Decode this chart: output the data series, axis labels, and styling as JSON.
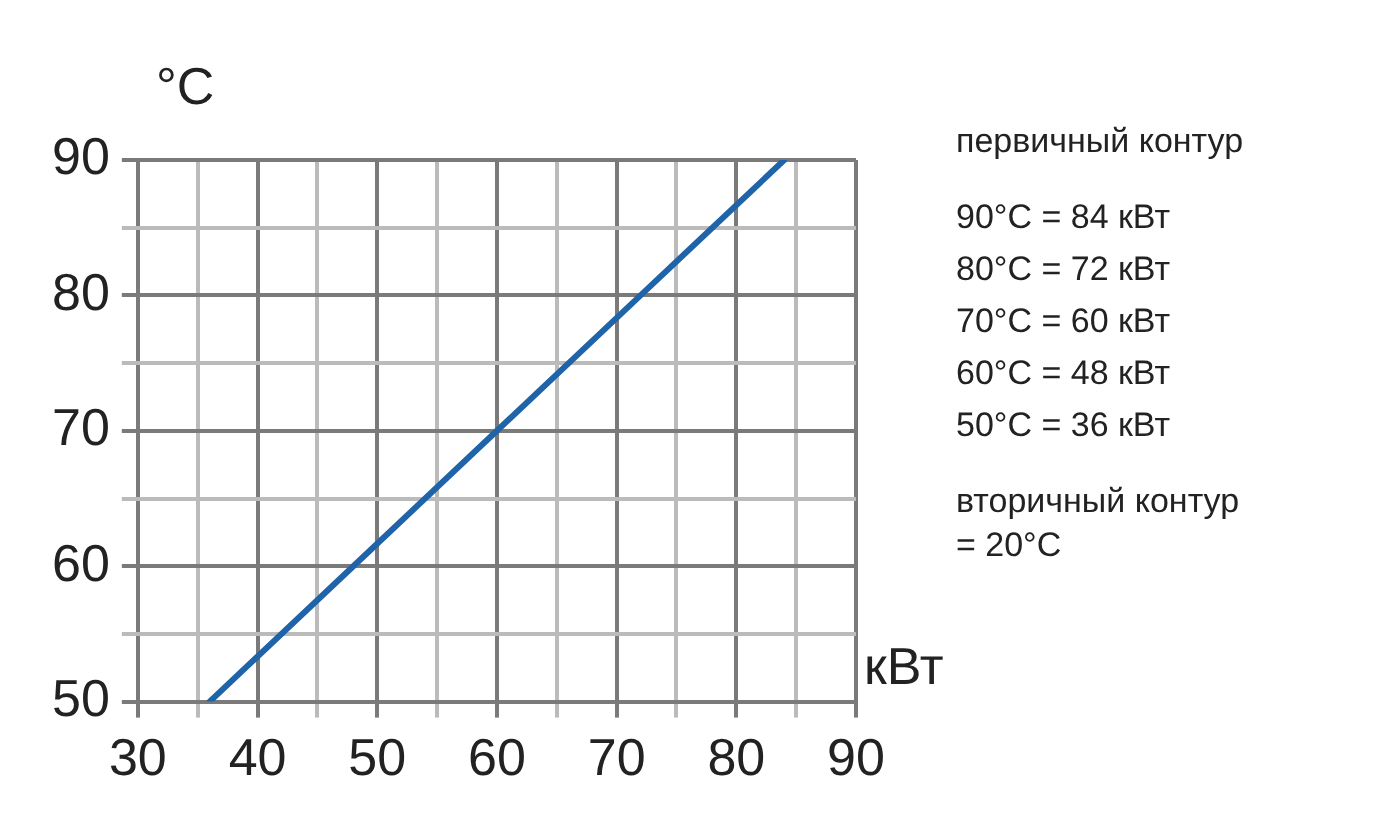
{
  "chart_data": {
    "type": "line",
    "xlabel": "кВт",
    "ylabel": "°C",
    "x": [
      36,
      48,
      60,
      72,
      84
    ],
    "series": [
      {
        "color": "#1f64a8",
        "values": [
          50,
          60,
          70,
          80,
          90
        ]
      }
    ],
    "xlim": [
      30,
      90
    ],
    "ylim": [
      50,
      90
    ],
    "xticks": [
      30,
      {
        "value": 35,
        "label": null
      },
      40,
      {
        "value": 45,
        "label": null
      },
      50,
      {
        "value": 55,
        "label": null
      },
      60,
      {
        "value": 65,
        "label": null
      },
      70,
      {
        "value": 75,
        "label": null
      },
      80,
      {
        "value": 85,
        "label": null
      },
      90
    ],
    "yticks": [
      50,
      {
        "value": 55,
        "label": null
      },
      60,
      {
        "value": 65,
        "label": null
      },
      70,
      {
        "value": 75,
        "label": null
      },
      80,
      {
        "value": 85,
        "label": null
      },
      90
    ],
    "grid": true,
    "legend": false,
    "marker": "none",
    "line_style": "solid",
    "annotations": [
      "первичный контур",
      "90°C = 84 кВт",
      "80°C = 72 кВт",
      "70°C = 60 кВт",
      "60°C = 48 кВт",
      "50°C = 36 кВт",
      "вторичный контур\n= 20°C"
    ]
  }
}
